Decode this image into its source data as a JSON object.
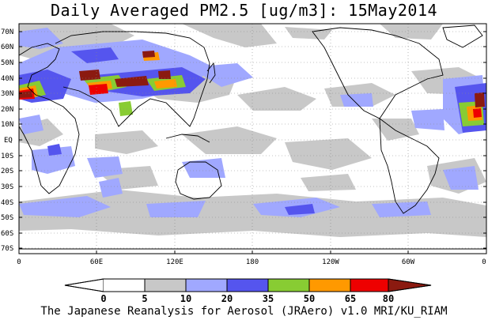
{
  "title": "Daily Averaged PM2.5 [ug/m3]: 15May2014",
  "footer": "The Japanese Reanalysis for Aerosol (JRAero) v1.0 MRI/KU_RIAM",
  "map": {
    "lat_labels": [
      "70N",
      "60N",
      "50N",
      "40N",
      "30N",
      "20N",
      "10N",
      "EQ",
      "10S",
      "20S",
      "30S",
      "40S",
      "50S",
      "60S",
      "70S"
    ],
    "lon_labels": [
      "0",
      "60E",
      "120E",
      "180",
      "120W",
      "60W",
      "0"
    ]
  },
  "colorbar": {
    "labels": [
      "0",
      "5",
      "10",
      "20",
      "35",
      "50",
      "65",
      "80"
    ],
    "colors": {
      "c0_5": "#ffffff",
      "c5_10": "#c8c8c8",
      "c10_20": "#a0a8ff",
      "c20_35": "#5555ee",
      "c35_50": "#88cc33",
      "c50_65": "#ff9900",
      "c65_80": "#ee0000",
      "c80_plus": "#8b1a10"
    }
  }
}
